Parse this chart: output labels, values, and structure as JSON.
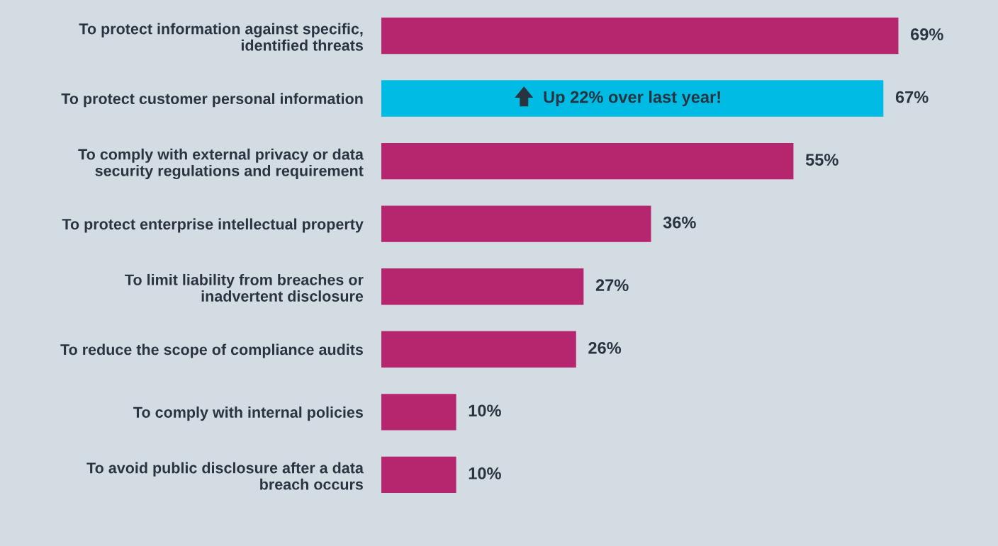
{
  "chart_data": {
    "type": "bar",
    "orientation": "horizontal",
    "categories": [
      "To protect information against specific,\nidentified threats",
      "To protect customer personal information",
      "To comply with external privacy or data\nsecurity regulations and requirement",
      "To protect enterprise intellectual property",
      "To limit liability from breaches or\ninadvertent disclosure",
      "To reduce the scope of compliance audits",
      "To comply with internal policies",
      "To avoid public disclosure after a data\nbreach occurs"
    ],
    "values": [
      69,
      67,
      55,
      36,
      27,
      26,
      10,
      10
    ],
    "value_labels": [
      "69%",
      "67%",
      "55%",
      "36%",
      "27%",
      "26%",
      "10%",
      "10%"
    ],
    "colors": [
      "#b5266f",
      "#00bce4",
      "#b5266f",
      "#b5266f",
      "#b5266f",
      "#b5266f",
      "#b5266f",
      "#b5266f"
    ],
    "annotations": [
      "Up 22% over last year!"
    ],
    "grid": false,
    "legend": false
  }
}
